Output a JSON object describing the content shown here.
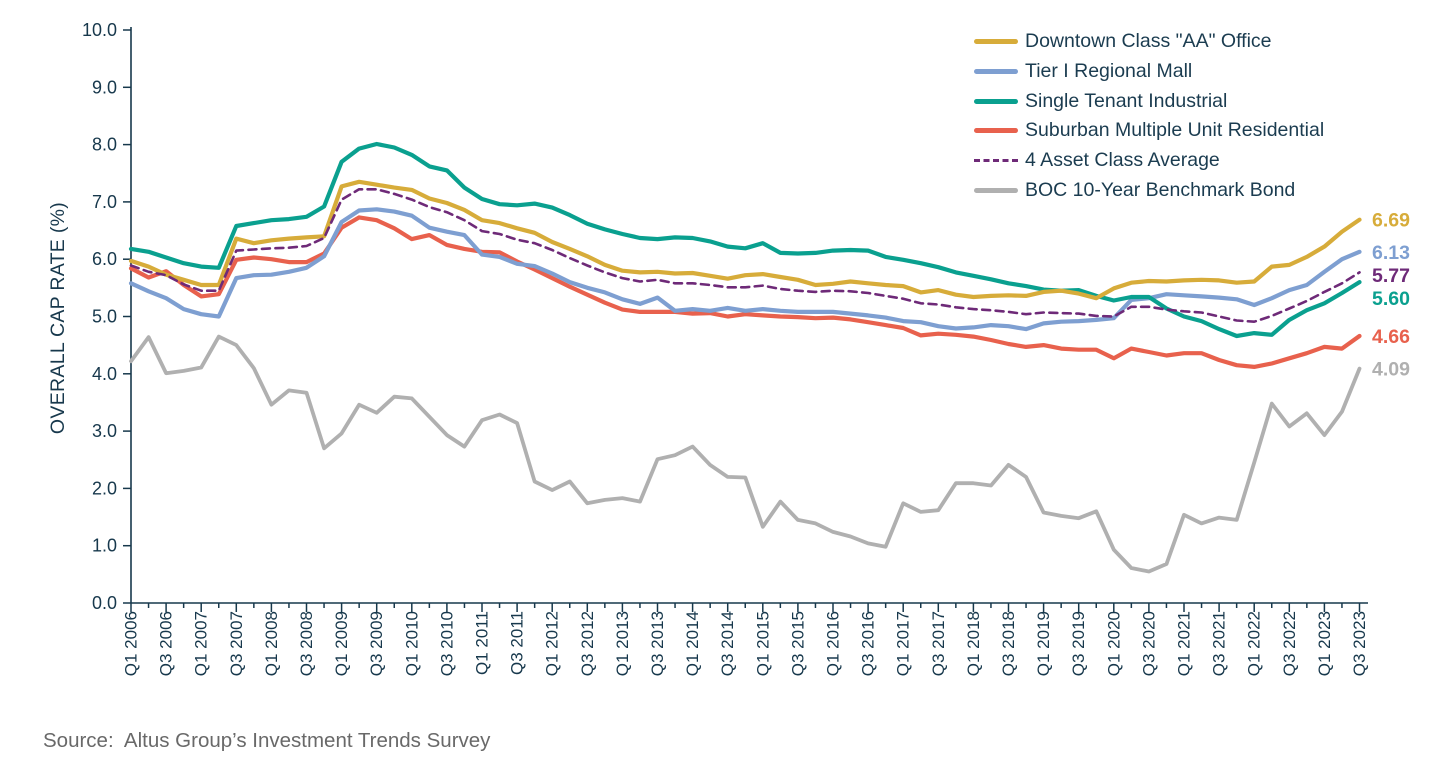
{
  "source": {
    "label": "Source:  Altus Group’s Investment Trends Survey"
  },
  "chart_data": {
    "type": "line",
    "title": "",
    "xlabel": "",
    "ylabel": "OVERALL CAP RATE (%)",
    "ylim": [
      0,
      10
    ],
    "ytick_step": 1,
    "yticks": [
      "0.0",
      "1.0",
      "2.0",
      "3.0",
      "4.0",
      "5.0",
      "6.0",
      "7.0",
      "8.0",
      "9.0",
      "10.0"
    ],
    "grid": false,
    "legend_position": "top-right",
    "axis_color": "#17384C",
    "x_labels": [
      "Q1 2006",
      "Q3 2006",
      "Q1 2007",
      "Q3 2007",
      "Q1 2008",
      "Q3 2008",
      "Q1 2009",
      "Q3 2009",
      "Q1 2010",
      "Q3 2010",
      "Q1 2011",
      "Q3 2011",
      "Q1 2012",
      "Q3 2012",
      "Q1 2013",
      "Q3 2013",
      "Q1 2014",
      "Q3 2014",
      "Q1 2015",
      "Q3 2015",
      "Q1 2016",
      "Q3 2016",
      "Q1 2017",
      "Q3 2017",
      "Q1 2018",
      "Q3 2018",
      "Q1 2019",
      "Q3 2019",
      "Q1 2020",
      "Q3 2020",
      "Q1 2021",
      "Q3 2021",
      "Q1 2022",
      "Q3 2022",
      "Q1 2023",
      "Q3 2023"
    ],
    "x_frequency": "quarterly",
    "series": [
      {
        "name": "Downtown Class \"AA\" Office",
        "color": "#D7AC3A",
        "dash": null,
        "end_label": "6.69",
        "values": [
          5.97,
          5.87,
          5.73,
          5.64,
          5.55,
          5.55,
          6.36,
          6.28,
          6.33,
          6.36,
          6.38,
          6.4,
          7.27,
          7.35,
          7.3,
          7.25,
          7.21,
          7.06,
          6.98,
          6.86,
          6.68,
          6.63,
          6.54,
          6.46,
          6.3,
          6.18,
          6.05,
          5.9,
          5.8,
          5.77,
          5.78,
          5.75,
          5.76,
          5.71,
          5.66,
          5.72,
          5.74,
          5.69,
          5.64,
          5.55,
          5.57,
          5.61,
          5.58,
          5.55,
          5.53,
          5.42,
          5.46,
          5.38,
          5.34,
          5.36,
          5.37,
          5.36,
          5.43,
          5.45,
          5.4,
          5.32,
          5.49,
          5.59,
          5.62,
          5.61,
          5.63,
          5.64,
          5.63,
          5.59,
          5.61,
          5.87,
          5.9,
          6.04,
          6.22,
          6.48,
          6.69
        ]
      },
      {
        "name": "Tier I Regional Mall",
        "color": "#7E9FD1",
        "dash": null,
        "end_label": "6.13",
        "values": [
          5.58,
          5.44,
          5.32,
          5.13,
          5.04,
          5.0,
          5.67,
          5.72,
          5.73,
          5.78,
          5.85,
          6.05,
          6.65,
          6.85,
          6.87,
          6.83,
          6.76,
          6.55,
          6.48,
          6.42,
          6.08,
          6.04,
          5.92,
          5.88,
          5.75,
          5.6,
          5.5,
          5.42,
          5.3,
          5.22,
          5.33,
          5.1,
          5.13,
          5.1,
          5.15,
          5.1,
          5.13,
          5.1,
          5.08,
          5.08,
          5.08,
          5.05,
          5.02,
          4.98,
          4.92,
          4.9,
          4.83,
          4.79,
          4.81,
          4.85,
          4.83,
          4.78,
          4.88,
          4.91,
          4.92,
          4.94,
          4.97,
          5.29,
          5.32,
          5.39,
          5.37,
          5.35,
          5.33,
          5.3,
          5.2,
          5.32,
          5.46,
          5.55,
          5.78,
          6.0,
          6.13
        ]
      },
      {
        "name": "Single Tenant Industrial",
        "color": "#0AA08F",
        "dash": null,
        "end_label": "5.60",
        "values": [
          6.18,
          6.13,
          6.03,
          5.93,
          5.87,
          5.85,
          6.58,
          6.63,
          6.68,
          6.7,
          6.74,
          6.92,
          7.7,
          7.93,
          8.01,
          7.95,
          7.82,
          7.62,
          7.55,
          7.25,
          7.05,
          6.96,
          6.94,
          6.97,
          6.9,
          6.77,
          6.62,
          6.52,
          6.44,
          6.37,
          6.35,
          6.38,
          6.37,
          6.31,
          6.22,
          6.19,
          6.28,
          6.11,
          6.1,
          6.11,
          6.15,
          6.16,
          6.15,
          6.04,
          5.99,
          5.93,
          5.86,
          5.77,
          5.71,
          5.65,
          5.58,
          5.53,
          5.47,
          5.45,
          5.46,
          5.36,
          5.28,
          5.34,
          5.34,
          5.14,
          5.0,
          4.92,
          4.78,
          4.66,
          4.71,
          4.68,
          4.94,
          5.11,
          5.23,
          5.41,
          5.6
        ]
      },
      {
        "name": "Suburban Multiple Unit Residential",
        "color": "#E8614D",
        "dash": null,
        "end_label": "4.66",
        "values": [
          5.84,
          5.68,
          5.79,
          5.55,
          5.35,
          5.39,
          5.99,
          6.03,
          6.0,
          5.95,
          5.95,
          6.1,
          6.55,
          6.73,
          6.68,
          6.54,
          6.35,
          6.42,
          6.25,
          6.18,
          6.13,
          6.12,
          5.96,
          5.82,
          5.67,
          5.52,
          5.38,
          5.24,
          5.12,
          5.08,
          5.08,
          5.08,
          5.05,
          5.06,
          5.0,
          5.04,
          5.02,
          5.0,
          4.99,
          4.97,
          4.98,
          4.95,
          4.9,
          4.85,
          4.8,
          4.67,
          4.7,
          4.68,
          4.65,
          4.59,
          4.52,
          4.47,
          4.5,
          4.44,
          4.42,
          4.42,
          4.27,
          4.44,
          4.38,
          4.32,
          4.36,
          4.36,
          4.24,
          4.15,
          4.12,
          4.18,
          4.27,
          4.36,
          4.47,
          4.44,
          4.66
        ]
      },
      {
        "name": "4 Asset Class Average",
        "color": "#6E2A78",
        "dash": "8 5.5",
        "end_label": "5.77",
        "values": [
          5.89,
          5.78,
          5.72,
          5.56,
          5.45,
          5.45,
          6.15,
          6.17,
          6.19,
          6.2,
          6.23,
          6.37,
          7.04,
          7.22,
          7.22,
          7.14,
          7.04,
          6.91,
          6.82,
          6.68,
          6.49,
          6.44,
          6.34,
          6.28,
          6.16,
          6.02,
          5.89,
          5.77,
          5.67,
          5.61,
          5.64,
          5.58,
          5.58,
          5.55,
          5.51,
          5.51,
          5.54,
          5.48,
          5.45,
          5.43,
          5.45,
          5.44,
          5.41,
          5.36,
          5.31,
          5.23,
          5.21,
          5.16,
          5.13,
          5.11,
          5.08,
          5.04,
          5.07,
          5.06,
          5.05,
          5.01,
          5.0,
          5.17,
          5.17,
          5.12,
          5.09,
          5.07,
          5.0,
          4.93,
          4.91,
          5.01,
          5.14,
          5.27,
          5.43,
          5.58,
          5.77
        ]
      },
      {
        "name": "BOC 10-Year Benchmark Bond",
        "color": "#B0B0B0",
        "dash": null,
        "end_label": "4.09",
        "values": [
          4.22,
          4.64,
          4.01,
          4.05,
          4.11,
          4.65,
          4.5,
          4.1,
          3.46,
          3.71,
          3.67,
          2.7,
          2.96,
          3.46,
          3.32,
          3.6,
          3.57,
          3.25,
          2.93,
          2.73,
          3.19,
          3.29,
          3.14,
          2.12,
          1.97,
          2.12,
          1.74,
          1.8,
          1.83,
          1.77,
          2.51,
          2.58,
          2.73,
          2.41,
          2.2,
          2.19,
          1.33,
          1.77,
          1.45,
          1.39,
          1.24,
          1.16,
          1.04,
          0.98,
          1.74,
          1.59,
          1.62,
          2.09,
          2.09,
          2.05,
          2.41,
          2.2,
          1.58,
          1.52,
          1.48,
          1.6,
          0.93,
          0.61,
          0.55,
          0.68,
          1.54,
          1.39,
          1.49,
          1.45,
          2.45,
          3.48,
          3.08,
          3.31,
          2.93,
          3.34,
          4.09
        ]
      }
    ]
  }
}
